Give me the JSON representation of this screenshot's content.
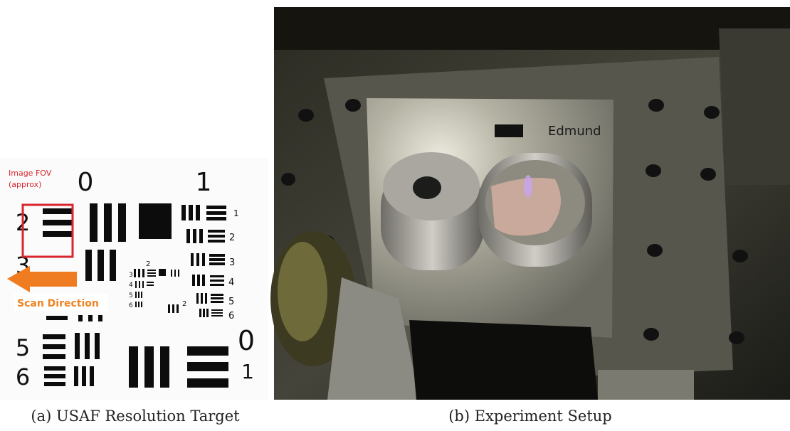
{
  "figure": {
    "panel_a": {
      "caption": "(a) USAF Resolution Target",
      "fov_label": [
        "Image FOV",
        "(approx)"
      ],
      "scan_label": "Scan Direction",
      "group_labels": [
        "0",
        "1",
        "0",
        "1"
      ],
      "left_element_labels": [
        "2",
        "3",
        "5",
        "6"
      ],
      "right_element_labels": [
        "1",
        "2",
        "3",
        "4",
        "5",
        "6"
      ],
      "inner_labels": [
        "2",
        "3",
        "4",
        "5",
        "6",
        "2"
      ]
    },
    "panel_b": {
      "caption": "(b) Experiment Setup",
      "plate_brand": "Edmund"
    }
  }
}
